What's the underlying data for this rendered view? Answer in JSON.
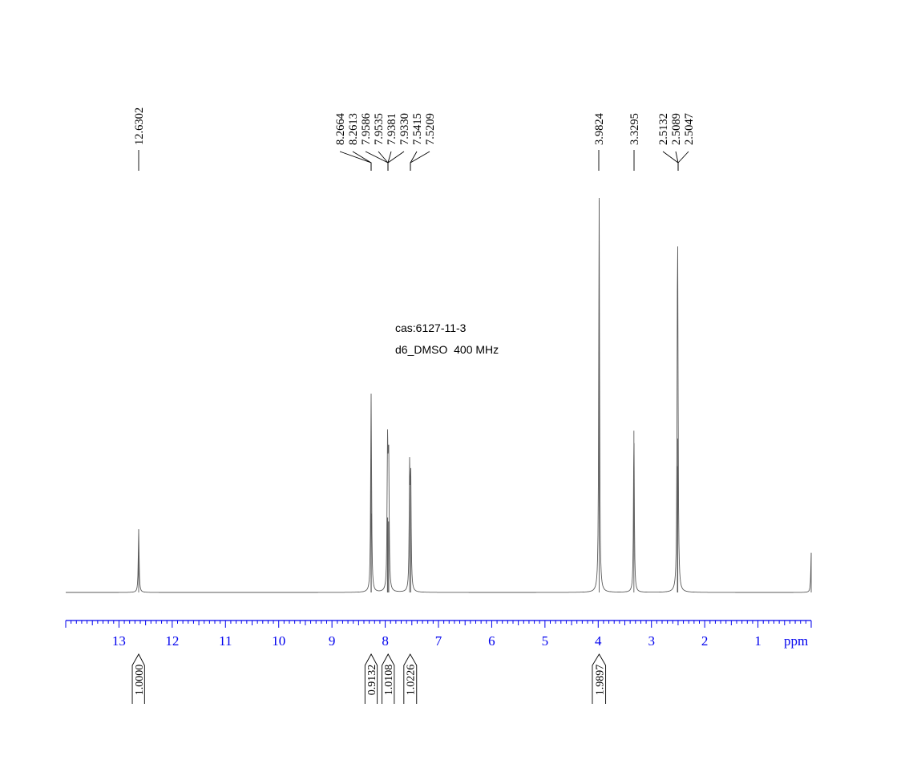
{
  "chart_data": {
    "type": "line",
    "title": "",
    "xlabel": "ppm",
    "ylabel": "",
    "x_reversed": true,
    "grid": false,
    "xlim": [
      14.0,
      0.0
    ],
    "x_ticks": [
      "13",
      "12",
      "11",
      "10",
      "9",
      "8",
      "7",
      "6",
      "5",
      "4",
      "3",
      "2",
      "1"
    ],
    "annotations": [
      "cas:6127-11-3",
      "d6_DMSO  400 MHz"
    ],
    "peaks": [
      {
        "ppm": 12.6302,
        "rel_height": 0.16
      },
      {
        "ppm": 8.2664,
        "rel_height": 0.34
      },
      {
        "ppm": 8.2613,
        "rel_height": 0.2
      },
      {
        "ppm": 7.9586,
        "rel_height": 0.19
      },
      {
        "ppm": 7.9535,
        "rel_height": 0.19
      },
      {
        "ppm": 7.9381,
        "rel_height": 0.18
      },
      {
        "ppm": 7.933,
        "rel_height": 0.18
      },
      {
        "ppm": 7.5415,
        "rel_height": 0.3
      },
      {
        "ppm": 7.5209,
        "rel_height": 0.28
      },
      {
        "ppm": 3.9824,
        "rel_height": 1.0
      },
      {
        "ppm": 3.3295,
        "rel_height": 0.41
      },
      {
        "ppm": 2.5132,
        "rel_height": 0.32
      },
      {
        "ppm": 2.5089,
        "rel_height": 0.39
      },
      {
        "ppm": 2.5047,
        "rel_height": 0.32
      },
      {
        "ppm": 0.0,
        "rel_height": 0.1
      }
    ],
    "peak_labels": [
      "12.6302",
      "8.2664",
      "8.2613",
      "7.9586",
      "7.9535",
      "7.9381",
      "7.9330",
      "7.5415",
      "7.5209",
      "3.9824",
      "3.3295",
      "2.5132",
      "2.5089",
      "2.5047"
    ],
    "integrals": [
      {
        "center": 12.6302,
        "from": 12.75,
        "to": 12.52,
        "value": "1.0000"
      },
      {
        "center": 8.2638,
        "from": 8.38,
        "to": 8.15,
        "value": "0.9132"
      },
      {
        "center": 7.9458,
        "from": 8.06,
        "to": 7.83,
        "value": "1.0108"
      },
      {
        "center": 7.5312,
        "from": 7.65,
        "to": 7.41,
        "value": "1.0226"
      },
      {
        "center": 3.9824,
        "from": 4.11,
        "to": 3.86,
        "value": "1.9897"
      }
    ],
    "colors": {
      "spectrum": "#5a5a5a",
      "axis": "#0000ee",
      "labels": "#000000"
    }
  }
}
